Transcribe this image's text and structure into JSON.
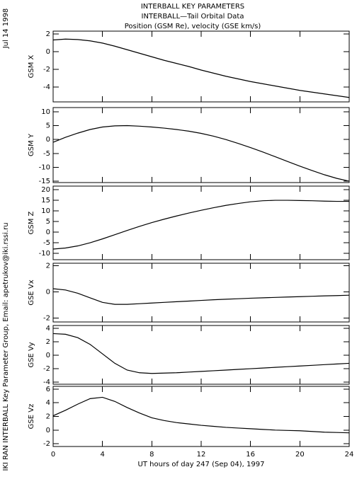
{
  "header": {
    "title": [
      "INTERBALL KEY PARAMETERS",
      "INTERBALL—Tail Orbital Data",
      "Position (GSM Re), velocity (GSE km/s)"
    ],
    "date": "Jul 14 1998",
    "credit": "IKI RAN INTERBALL Key Parameter Group, Email: apetrukov@iki.rssi.ru"
  },
  "chart_data": [
    {
      "type": "line",
      "ylabel": "GSM X",
      "color": "#000000",
      "x": [
        0,
        1,
        2,
        3,
        4,
        5,
        6,
        7,
        8,
        9,
        10,
        11,
        12,
        13,
        14,
        15,
        16,
        17,
        18,
        19,
        20,
        21,
        22,
        23,
        24
      ],
      "values": [
        1.3,
        1.4,
        1.35,
        1.2,
        0.95,
        0.6,
        0.2,
        -0.2,
        -0.6,
        -1,
        -1.35,
        -1.7,
        -2.1,
        -2.45,
        -2.8,
        -3.1,
        -3.4,
        -3.65,
        -3.9,
        -4.15,
        -4.4,
        -4.6,
        -4.8,
        -5.0,
        -5.2
      ],
      "xlim": [
        0,
        24
      ],
      "ylim": [
        -5.7,
        2.3
      ],
      "yticks": [
        -4,
        -2,
        0,
        2
      ]
    },
    {
      "type": "line",
      "ylabel": "GSM Y",
      "color": "#000000",
      "x": [
        0,
        1,
        2,
        3,
        4,
        5,
        6,
        7,
        8,
        9,
        10,
        11,
        12,
        13,
        14,
        15,
        16,
        17,
        18,
        19,
        20,
        21,
        22,
        23,
        24
      ],
      "values": [
        -1,
        0.8,
        2.3,
        3.6,
        4.5,
        4.9,
        5,
        4.8,
        4.5,
        4.1,
        3.6,
        3,
        2.2,
        1.2,
        0,
        -1.4,
        -2.9,
        -4.5,
        -6.2,
        -7.9,
        -9.6,
        -11.2,
        -12.7,
        -14,
        -15
      ],
      "xlim": [
        0,
        24
      ],
      "ylim": [
        -15.5,
        11.5
      ],
      "yticks": [
        -15,
        -10,
        -5,
        0,
        5,
        10
      ]
    },
    {
      "type": "line",
      "ylabel": "GSM Z",
      "color": "#000000",
      "x": [
        0,
        1,
        2,
        3,
        4,
        5,
        6,
        7,
        8,
        9,
        10,
        11,
        12,
        13,
        14,
        15,
        16,
        17,
        18,
        19,
        20,
        21,
        22,
        23,
        24
      ],
      "values": [
        -8,
        -7.5,
        -6.5,
        -5,
        -3.2,
        -1.2,
        0.8,
        2.7,
        4.5,
        6.1,
        7.6,
        9,
        10.3,
        11.5,
        12.6,
        13.5,
        14.3,
        14.8,
        15,
        15,
        14.9,
        14.8,
        14.6,
        14.5,
        14.5
      ],
      "xlim": [
        0,
        24
      ],
      "ylim": [
        -13,
        21.7
      ],
      "yticks": [
        -10,
        -5,
        0,
        5,
        10,
        15,
        20
      ]
    },
    {
      "type": "line",
      "ylabel": "GSE Vx",
      "color": "#000000",
      "x": [
        0,
        1,
        2,
        3,
        4,
        5,
        6,
        7,
        8,
        9,
        10,
        11,
        12,
        13,
        14,
        15,
        16,
        17,
        18,
        19,
        20,
        21,
        22,
        23,
        24
      ],
      "values": [
        0.25,
        0.15,
        -0.1,
        -0.45,
        -0.8,
        -0.95,
        -0.95,
        -0.9,
        -0.85,
        -0.8,
        -0.75,
        -0.7,
        -0.65,
        -0.6,
        -0.56,
        -0.52,
        -0.48,
        -0.45,
        -0.42,
        -0.39,
        -0.36,
        -0.33,
        -0.3,
        -0.28,
        -0.25
      ],
      "xlim": [
        0,
        24
      ],
      "ylim": [
        -2.3,
        2.2
      ],
      "yticks": [
        -2,
        0,
        2
      ]
    },
    {
      "type": "line",
      "ylabel": "GSE Vy",
      "color": "#000000",
      "x": [
        0,
        1,
        2,
        3,
        4,
        5,
        6,
        7,
        8,
        9,
        10,
        11,
        12,
        13,
        14,
        15,
        16,
        17,
        18,
        19,
        20,
        21,
        22,
        23,
        24
      ],
      "values": [
        3.2,
        3.1,
        2.6,
        1.6,
        0.2,
        -1.2,
        -2.2,
        -2.6,
        -2.7,
        -2.65,
        -2.6,
        -2.5,
        -2.4,
        -2.3,
        -2.2,
        -2.1,
        -2,
        -1.9,
        -1.8,
        -1.7,
        -1.6,
        -1.5,
        -1.4,
        -1.3,
        -1.2
      ],
      "xlim": [
        0,
        24
      ],
      "ylim": [
        -4.3,
        4.4
      ],
      "yticks": [
        -4,
        -2,
        0,
        2,
        4
      ]
    },
    {
      "type": "line",
      "ylabel": "GSE Vz",
      "color": "#000000",
      "x": [
        0,
        1,
        2,
        3,
        4,
        5,
        6,
        7,
        8,
        9,
        10,
        11,
        12,
        13,
        14,
        15,
        16,
        17,
        18,
        19,
        20,
        21,
        22,
        23,
        24
      ],
      "values": [
        2.1,
        2.9,
        3.8,
        4.6,
        4.8,
        4.2,
        3.3,
        2.5,
        1.8,
        1.4,
        1.1,
        0.9,
        0.7,
        0.55,
        0.4,
        0.3,
        0.2,
        0.1,
        0,
        -0.05,
        -0.1,
        -0.2,
        -0.3,
        -0.35,
        -0.4
      ],
      "xlim": [
        0,
        24
      ],
      "ylim": [
        -2.4,
        6.4
      ],
      "yticks": [
        -2,
        0,
        2,
        4,
        6
      ],
      "xticks": [
        0,
        4,
        8,
        12,
        16,
        20,
        24
      ],
      "xlabel": "UT hours of day 247 (Sep 04), 1997"
    }
  ]
}
